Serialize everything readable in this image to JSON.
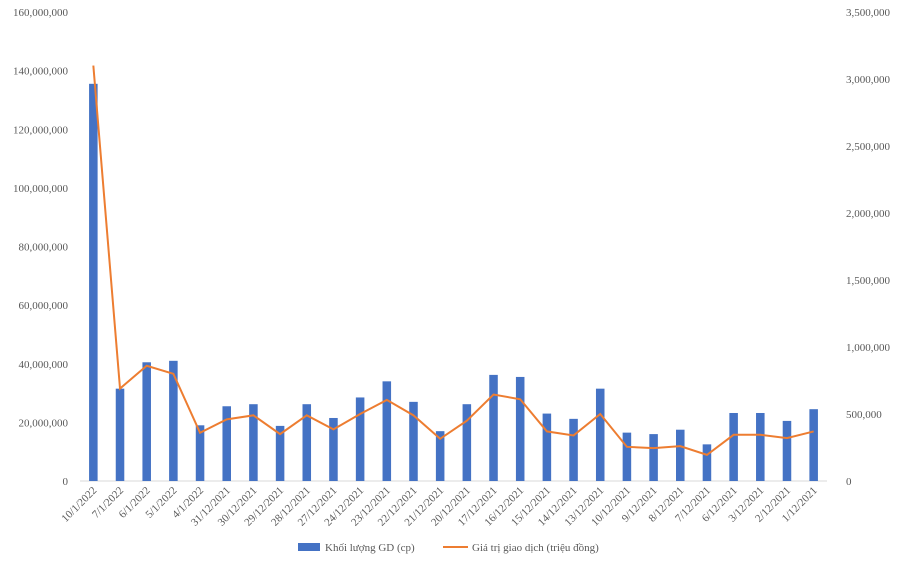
{
  "chart_data": {
    "type": "bar",
    "categories": [
      "10/1/2022",
      "7/1/2022",
      "6/1/2022",
      "5/1/2022",
      "4/1/2022",
      "31/12/2021",
      "30/12/2021",
      "29/12/2021",
      "28/12/2021",
      "27/12/2021",
      "24/12/2021",
      "23/12/2021",
      "22/12/2021",
      "21/12/2021",
      "20/12/2021",
      "17/12/2021",
      "16/12/2021",
      "15/12/2021",
      "14/12/2021",
      "13/12/2021",
      "10/12/2021",
      "9/12/2021",
      "8/12/2021",
      "7/12/2021",
      "6/12/2021",
      "3/12/2021",
      "2/12/2021",
      "1/12/2021"
    ],
    "series": [
      {
        "name": "Khối lượng GD (cp)",
        "type": "bar",
        "axis": "left",
        "color": "#4472C4",
        "values": [
          135500000,
          31500000,
          40500000,
          41000000,
          19000000,
          25500000,
          26200000,
          18800000,
          26200000,
          21500000,
          28500000,
          34000000,
          27000000,
          17000000,
          26200000,
          36200000,
          35500000,
          23000000,
          21200000,
          31500000,
          16500000,
          16000000,
          17500000,
          12500000,
          23200000,
          23200000,
          20500000,
          24500000
        ]
      },
      {
        "name": "Giá trị giao  dịch (triệu đồng)",
        "type": "line",
        "axis": "right",
        "color": "#ED7D31",
        "values": [
          3100000,
          690000,
          860000,
          800000,
          360000,
          460000,
          490000,
          350000,
          490000,
          385000,
          500000,
          605000,
          490000,
          315000,
          450000,
          645000,
          610000,
          370000,
          340000,
          500000,
          255000,
          245000,
          260000,
          195000,
          345000,
          345000,
          320000,
          370000
        ]
      }
    ],
    "y_left": {
      "min": 0,
      "max": 160000000,
      "step": 20000000,
      "tick_labels": [
        "0",
        "20,000,000",
        "40,000,000",
        "60,000,000",
        "80,000,000",
        "100,000,000",
        "120,000,000",
        "140,000,000",
        "160,000,000"
      ]
    },
    "y_right": {
      "min": 0,
      "max": 3500000,
      "step": 500000,
      "tick_labels": [
        "0",
        "500,000",
        "1,000,000",
        "1,500,000",
        "2,000,000",
        "2,500,000",
        "3,000,000",
        "3,500,000"
      ]
    },
    "grid": false,
    "legend_position": "bottom"
  }
}
